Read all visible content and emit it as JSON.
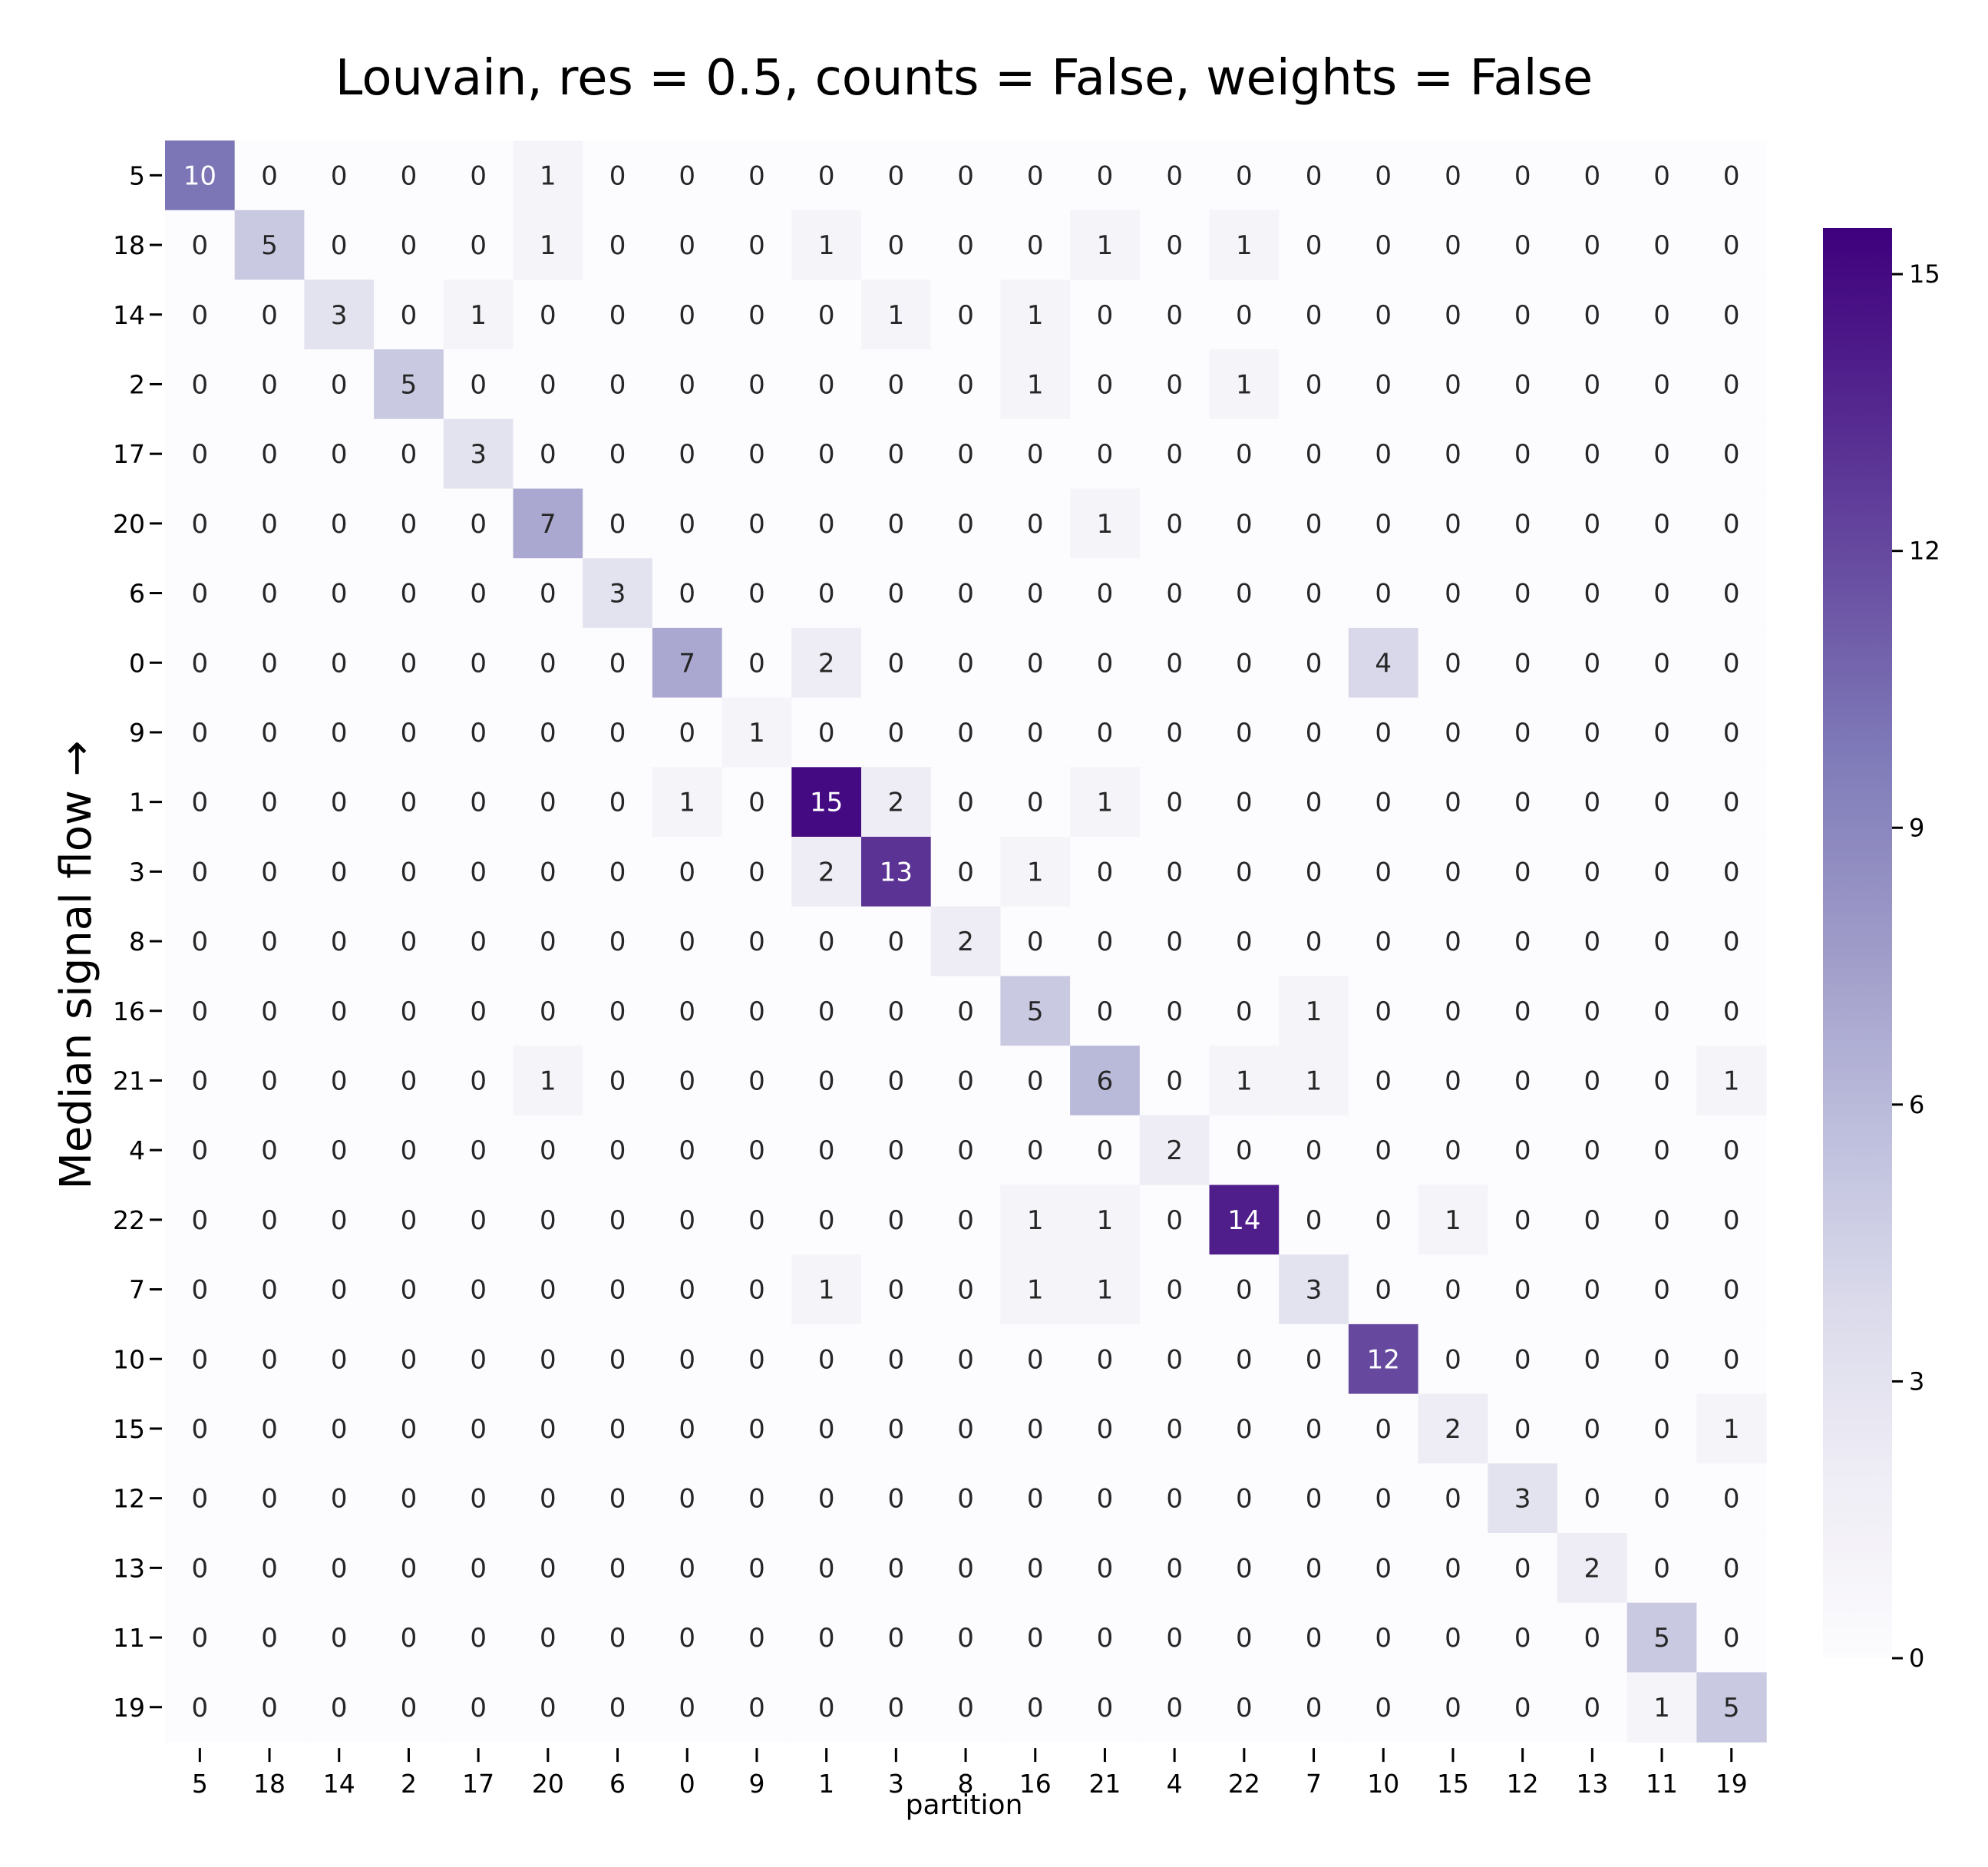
{
  "chart_data": {
    "type": "heatmap",
    "title": "Louvain, res = 0.5, counts = False, weights = False",
    "xlabel": "partition",
    "ylabel": "Median signal flow →",
    "x_categories": [
      "5",
      "18",
      "14",
      "2",
      "17",
      "20",
      "6",
      "0",
      "9",
      "1",
      "3",
      "8",
      "16",
      "21",
      "4",
      "22",
      "7",
      "10",
      "15",
      "12",
      "13",
      "11",
      "19"
    ],
    "y_categories": [
      "5",
      "18",
      "14",
      "2",
      "17",
      "20",
      "6",
      "0",
      "9",
      "1",
      "3",
      "8",
      "16",
      "21",
      "4",
      "22",
      "7",
      "10",
      "15",
      "12",
      "13",
      "11",
      "19"
    ],
    "values": [
      [
        10,
        0,
        0,
        0,
        0,
        1,
        0,
        0,
        0,
        0,
        0,
        0,
        0,
        0,
        0,
        0,
        0,
        0,
        0,
        0,
        0,
        0,
        0
      ],
      [
        0,
        5,
        0,
        0,
        0,
        1,
        0,
        0,
        0,
        1,
        0,
        0,
        0,
        1,
        0,
        1,
        0,
        0,
        0,
        0,
        0,
        0,
        0
      ],
      [
        0,
        0,
        3,
        0,
        1,
        0,
        0,
        0,
        0,
        0,
        1,
        0,
        1,
        0,
        0,
        0,
        0,
        0,
        0,
        0,
        0,
        0,
        0
      ],
      [
        0,
        0,
        0,
        5,
        0,
        0,
        0,
        0,
        0,
        0,
        0,
        0,
        1,
        0,
        0,
        1,
        0,
        0,
        0,
        0,
        0,
        0,
        0
      ],
      [
        0,
        0,
        0,
        0,
        3,
        0,
        0,
        0,
        0,
        0,
        0,
        0,
        0,
        0,
        0,
        0,
        0,
        0,
        0,
        0,
        0,
        0,
        0
      ],
      [
        0,
        0,
        0,
        0,
        0,
        7,
        0,
        0,
        0,
        0,
        0,
        0,
        0,
        1,
        0,
        0,
        0,
        0,
        0,
        0,
        0,
        0,
        0
      ],
      [
        0,
        0,
        0,
        0,
        0,
        0,
        3,
        0,
        0,
        0,
        0,
        0,
        0,
        0,
        0,
        0,
        0,
        0,
        0,
        0,
        0,
        0,
        0
      ],
      [
        0,
        0,
        0,
        0,
        0,
        0,
        0,
        7,
        0,
        2,
        0,
        0,
        0,
        0,
        0,
        0,
        0,
        4,
        0,
        0,
        0,
        0,
        0
      ],
      [
        0,
        0,
        0,
        0,
        0,
        0,
        0,
        0,
        1,
        0,
        0,
        0,
        0,
        0,
        0,
        0,
        0,
        0,
        0,
        0,
        0,
        0,
        0
      ],
      [
        0,
        0,
        0,
        0,
        0,
        0,
        0,
        1,
        0,
        15,
        2,
        0,
        0,
        1,
        0,
        0,
        0,
        0,
        0,
        0,
        0,
        0,
        0
      ],
      [
        0,
        0,
        0,
        0,
        0,
        0,
        0,
        0,
        0,
        2,
        13,
        0,
        1,
        0,
        0,
        0,
        0,
        0,
        0,
        0,
        0,
        0,
        0
      ],
      [
        0,
        0,
        0,
        0,
        0,
        0,
        0,
        0,
        0,
        0,
        0,
        2,
        0,
        0,
        0,
        0,
        0,
        0,
        0,
        0,
        0,
        0,
        0
      ],
      [
        0,
        0,
        0,
        0,
        0,
        0,
        0,
        0,
        0,
        0,
        0,
        0,
        5,
        0,
        0,
        0,
        1,
        0,
        0,
        0,
        0,
        0,
        0
      ],
      [
        0,
        0,
        0,
        0,
        0,
        1,
        0,
        0,
        0,
        0,
        0,
        0,
        0,
        6,
        0,
        1,
        1,
        0,
        0,
        0,
        0,
        0,
        1
      ],
      [
        0,
        0,
        0,
        0,
        0,
        0,
        0,
        0,
        0,
        0,
        0,
        0,
        0,
        0,
        2,
        0,
        0,
        0,
        0,
        0,
        0,
        0,
        0
      ],
      [
        0,
        0,
        0,
        0,
        0,
        0,
        0,
        0,
        0,
        0,
        0,
        0,
        1,
        1,
        0,
        14,
        0,
        0,
        1,
        0,
        0,
        0,
        0
      ],
      [
        0,
        0,
        0,
        0,
        0,
        0,
        0,
        0,
        0,
        1,
        0,
        0,
        1,
        1,
        0,
        0,
        3,
        0,
        0,
        0,
        0,
        0,
        0
      ],
      [
        0,
        0,
        0,
        0,
        0,
        0,
        0,
        0,
        0,
        0,
        0,
        0,
        0,
        0,
        0,
        0,
        0,
        12,
        0,
        0,
        0,
        0,
        0
      ],
      [
        0,
        0,
        0,
        0,
        0,
        0,
        0,
        0,
        0,
        0,
        0,
        0,
        0,
        0,
        0,
        0,
        0,
        0,
        2,
        0,
        0,
        0,
        1
      ],
      [
        0,
        0,
        0,
        0,
        0,
        0,
        0,
        0,
        0,
        0,
        0,
        0,
        0,
        0,
        0,
        0,
        0,
        0,
        0,
        3,
        0,
        0,
        0
      ],
      [
        0,
        0,
        0,
        0,
        0,
        0,
        0,
        0,
        0,
        0,
        0,
        0,
        0,
        0,
        0,
        0,
        0,
        0,
        0,
        0,
        2,
        0,
        0
      ],
      [
        0,
        0,
        0,
        0,
        0,
        0,
        0,
        0,
        0,
        0,
        0,
        0,
        0,
        0,
        0,
        0,
        0,
        0,
        0,
        0,
        0,
        5,
        0
      ],
      [
        0,
        0,
        0,
        0,
        0,
        0,
        0,
        0,
        0,
        0,
        0,
        0,
        0,
        0,
        0,
        0,
        0,
        0,
        0,
        0,
        0,
        1,
        5
      ]
    ],
    "colormap": "Purples",
    "color_range": [
      0,
      15.5
    ],
    "colorbar_ticks": [
      0,
      3,
      6,
      9,
      12,
      15
    ],
    "colorbar_tick_labels": [
      "0",
      "3",
      "6",
      "9",
      "12",
      "15"
    ],
    "grid": false,
    "legend": "colorbar right"
  }
}
